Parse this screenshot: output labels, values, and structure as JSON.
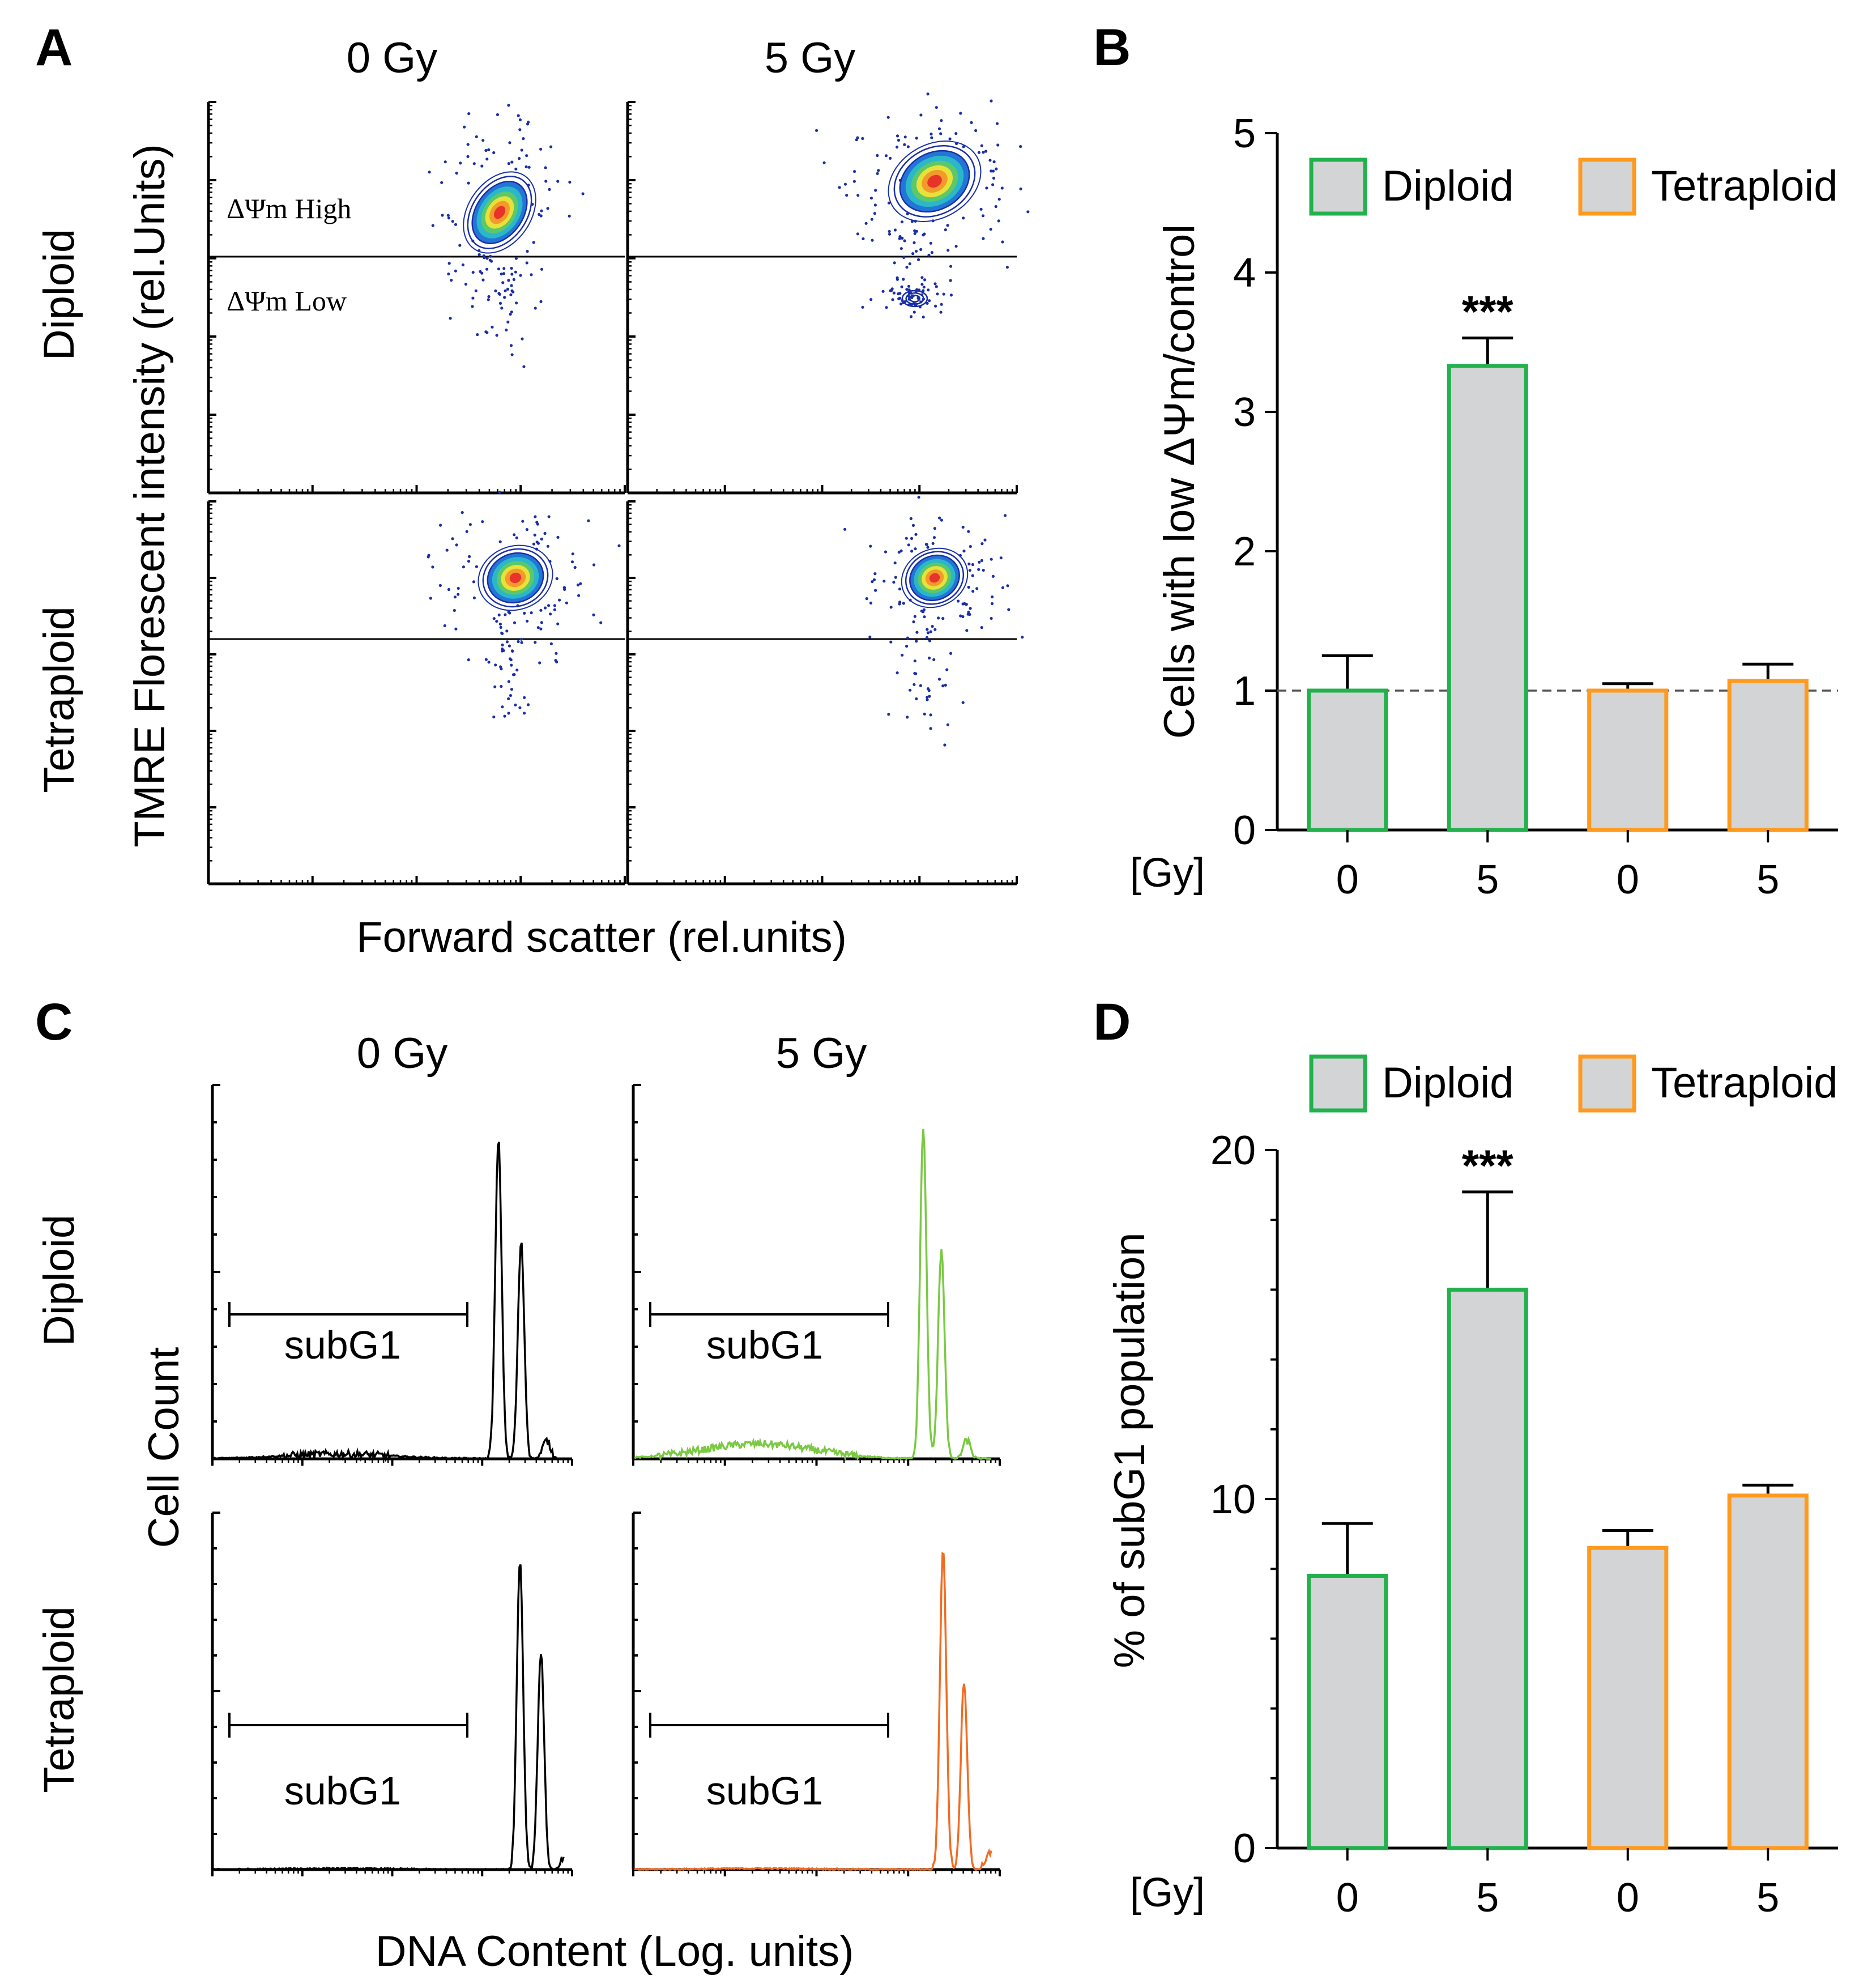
{
  "panels": {
    "A": {
      "letter": "A",
      "col_titles": [
        "0 Gy",
        "5 Gy"
      ],
      "row_labels": [
        "Diploid",
        "Tetraploid"
      ],
      "ylabel": "TMRE Florescent intensity (rel.Units)",
      "xlabel": "Forward scatter (rel.units)",
      "gate_high": "ΔΨm High",
      "gate_low": "ΔΨm Low"
    },
    "C": {
      "letter": "C",
      "col_titles": [
        "0 Gy",
        "5 Gy"
      ],
      "row_labels": [
        "Diploid",
        "Tetraploid"
      ],
      "ylabel": "Cell Count",
      "xlabel": "DNA Content (Log. units)",
      "gate_label": "subG1",
      "trace_colors": {
        "diploid_0": "#000000",
        "diploid_5": "#7ac943",
        "tetraploid_0": "#000000",
        "tetraploid_5": "#f26b21"
      }
    }
  },
  "chart_data": [
    {
      "id": "B",
      "letter": "B",
      "type": "bar",
      "xlabel": "[Gy]",
      "ylabel": "Cells with low ΔΨm/control",
      "categories": [
        "0",
        "5",
        "0",
        "5"
      ],
      "groups": [
        "Diploid",
        "Diploid",
        "Tetraploid",
        "Tetraploid"
      ],
      "values": [
        1.0,
        3.33,
        1.0,
        1.07
      ],
      "errors": [
        0.25,
        0.2,
        0.05,
        0.12
      ],
      "significance": [
        "",
        "***",
        "",
        ""
      ],
      "ylim": [
        0,
        5
      ],
      "yticks": [
        "0",
        "1",
        "2",
        "3",
        "4",
        "5"
      ],
      "reference_line": 1,
      "legend": [
        {
          "name": "Diploid",
          "color": "#22b14c"
        },
        {
          "name": "Tetraploid",
          "color": "#ff9a1e"
        }
      ],
      "bar_fill": "#d3d4d5"
    },
    {
      "id": "D",
      "letter": "D",
      "type": "bar",
      "xlabel": "[Gy]",
      "ylabel": "% of subG1 population",
      "categories": [
        "0",
        "5",
        "0",
        "5"
      ],
      "groups": [
        "Diploid",
        "Diploid",
        "Tetraploid",
        "Tetraploid"
      ],
      "values": [
        7.8,
        16.0,
        8.6,
        10.1
      ],
      "errors": [
        1.5,
        2.8,
        0.5,
        0.3
      ],
      "significance": [
        "",
        "***",
        "",
        ""
      ],
      "ylim": [
        0,
        20
      ],
      "yticks": [
        "0",
        "10",
        "20"
      ],
      "legend": [
        {
          "name": "Diploid",
          "color": "#22b14c"
        },
        {
          "name": "Tetraploid",
          "color": "#ff9a1e"
        }
      ],
      "bar_fill": "#d3d4d5"
    }
  ]
}
